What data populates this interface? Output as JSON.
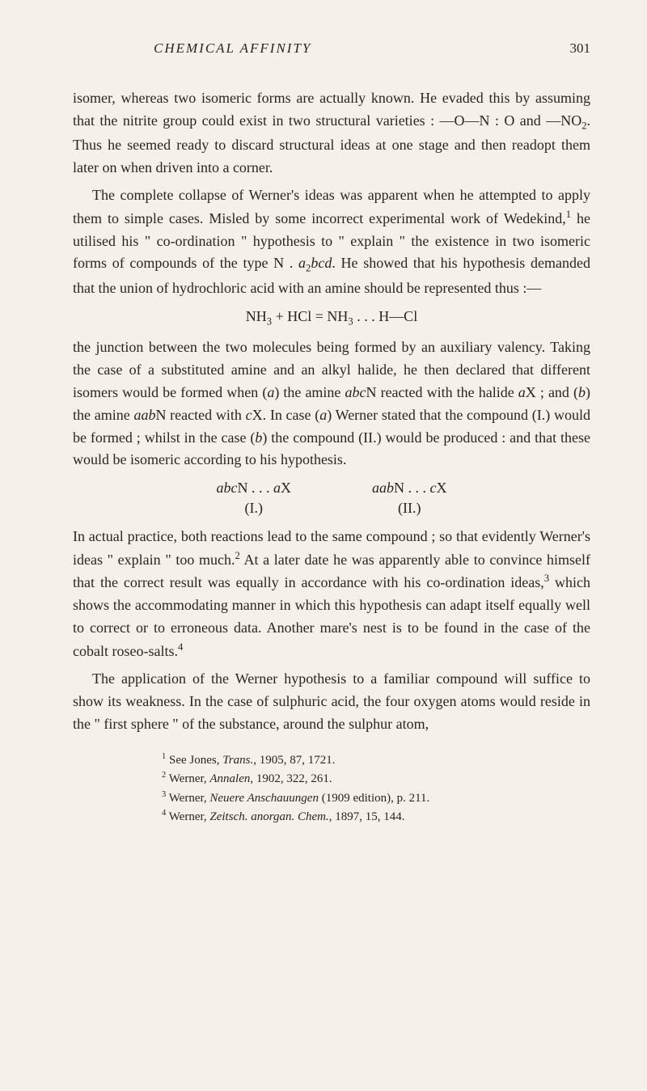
{
  "header": {
    "title": "CHEMICAL AFFINITY",
    "pageNumber": "301"
  },
  "paragraphs": {
    "p1_prefix": "isomer, whereas two isomeric forms are actually known. He evaded this by assuming that the nitrite group could exist in two structural varieties : —O—N : O and —NO",
    "p1_sub": "2",
    "p1_suffix": ". Thus he seemed ready to discard structural ideas at one stage and then readopt them later on when driven into a corner.",
    "p2_a": "The complete collapse of Werner's ideas was apparent when he attempted to apply them to simple cases. Misled by some incorrect experimental work of Wedekind,",
    "p2_sup1": "1",
    "p2_b": " he utilised his \" co-ordination \" hypothesis to \" explain \" the existence in two isomeric forms of compounds of the type N . ",
    "p2_ital1": "a",
    "p2_subsub": "2",
    "p2_ital2": "bcd",
    "p2_c": ". He showed that his hypothesis demanded that the union of hydro­chloric acid with an amine should be represented thus :—",
    "formula1_a": "NH",
    "formula1_sub1": "3",
    "formula1_b": " + HCl = NH",
    "formula1_sub2": "3",
    "formula1_c": " . . . H—Cl",
    "p3_a": "the junction between the two molecules being formed by an auxiliary valency. Taking the case of a substituted amine and an alkyl halide, he then declared that different isomers would be formed when (",
    "p3_ital_a1": "a",
    "p3_b": ") the amine ",
    "p3_ital_abc": "abc",
    "p3_c": "N reacted with the halide ",
    "p3_ital_a2": "a",
    "p3_d": "X ; and (",
    "p3_ital_b1": "b",
    "p3_e": ") the amine ",
    "p3_ital_aab": "aab",
    "p3_f": "N reacted with ",
    "p3_ital_c1": "c",
    "p3_g": "X. In case (",
    "p3_ital_a3": "a",
    "p3_h": ") Werner stated that the compound (I.) would be formed ; whilst in the case (",
    "p3_ital_b2": "b",
    "p3_i": ") the compound (II.) would be produced : and that these would be isomeric according to his hypothesis.",
    "formula2_left_top_ital": "abc",
    "formula2_left_top_rest": "N . . . ",
    "formula2_left_top_ital2": "a",
    "formula2_left_top_X": "X",
    "formula2_left_bottom": "(I.)",
    "formula2_right_top_ital": "aab",
    "formula2_right_top_rest": "N . . . ",
    "formula2_right_top_ital2": "c",
    "formula2_right_top_X": "X",
    "formula2_right_bottom": "(II.)",
    "p4_a": "In actual practice, both reactions lead to the same compound ; so that evidently Werner's ideas \" explain \" too much.",
    "p4_sup": "2",
    "p4_b": " At a later date he was apparently able to convince himself that the correct result was equally in accordance with his co-ordination ideas,",
    "p4_sup2": "3",
    "p4_c": " which shows the accommodating manner in which this hypothesis can adapt itself equally well to correct or to erroneous data. Another mare's nest is to be found in the case of the cobalt roseo-salts.",
    "p4_sup3": "4",
    "p5": "The application of the Werner hypothesis to a familiar compound will suffice to show its weakness. In the case of sulphuric acid, the four oxygen atoms would reside in the \" first sphere \" of the substance, around the sulphur atom,"
  },
  "footnotes": {
    "fn1_sup": "1",
    "fn1_a": " See Jones, ",
    "fn1_ital": "Trans.",
    "fn1_b": ", 1905, 87, 1721.",
    "fn2_sup": "2",
    "fn2_a": " Werner, ",
    "fn2_ital": "Annalen",
    "fn2_b": ", 1902, 322, 261.",
    "fn3_sup": "3",
    "fn3_a": " Werner, ",
    "fn3_ital": "Neuere Anschauungen",
    "fn3_b": " (1909 edition), p. 211.",
    "fn4_sup": "4",
    "fn4_a": " Werner, ",
    "fn4_ital": "Zeitsch. anorgan. Chem.",
    "fn4_b": ", 1897, 15, 144."
  }
}
